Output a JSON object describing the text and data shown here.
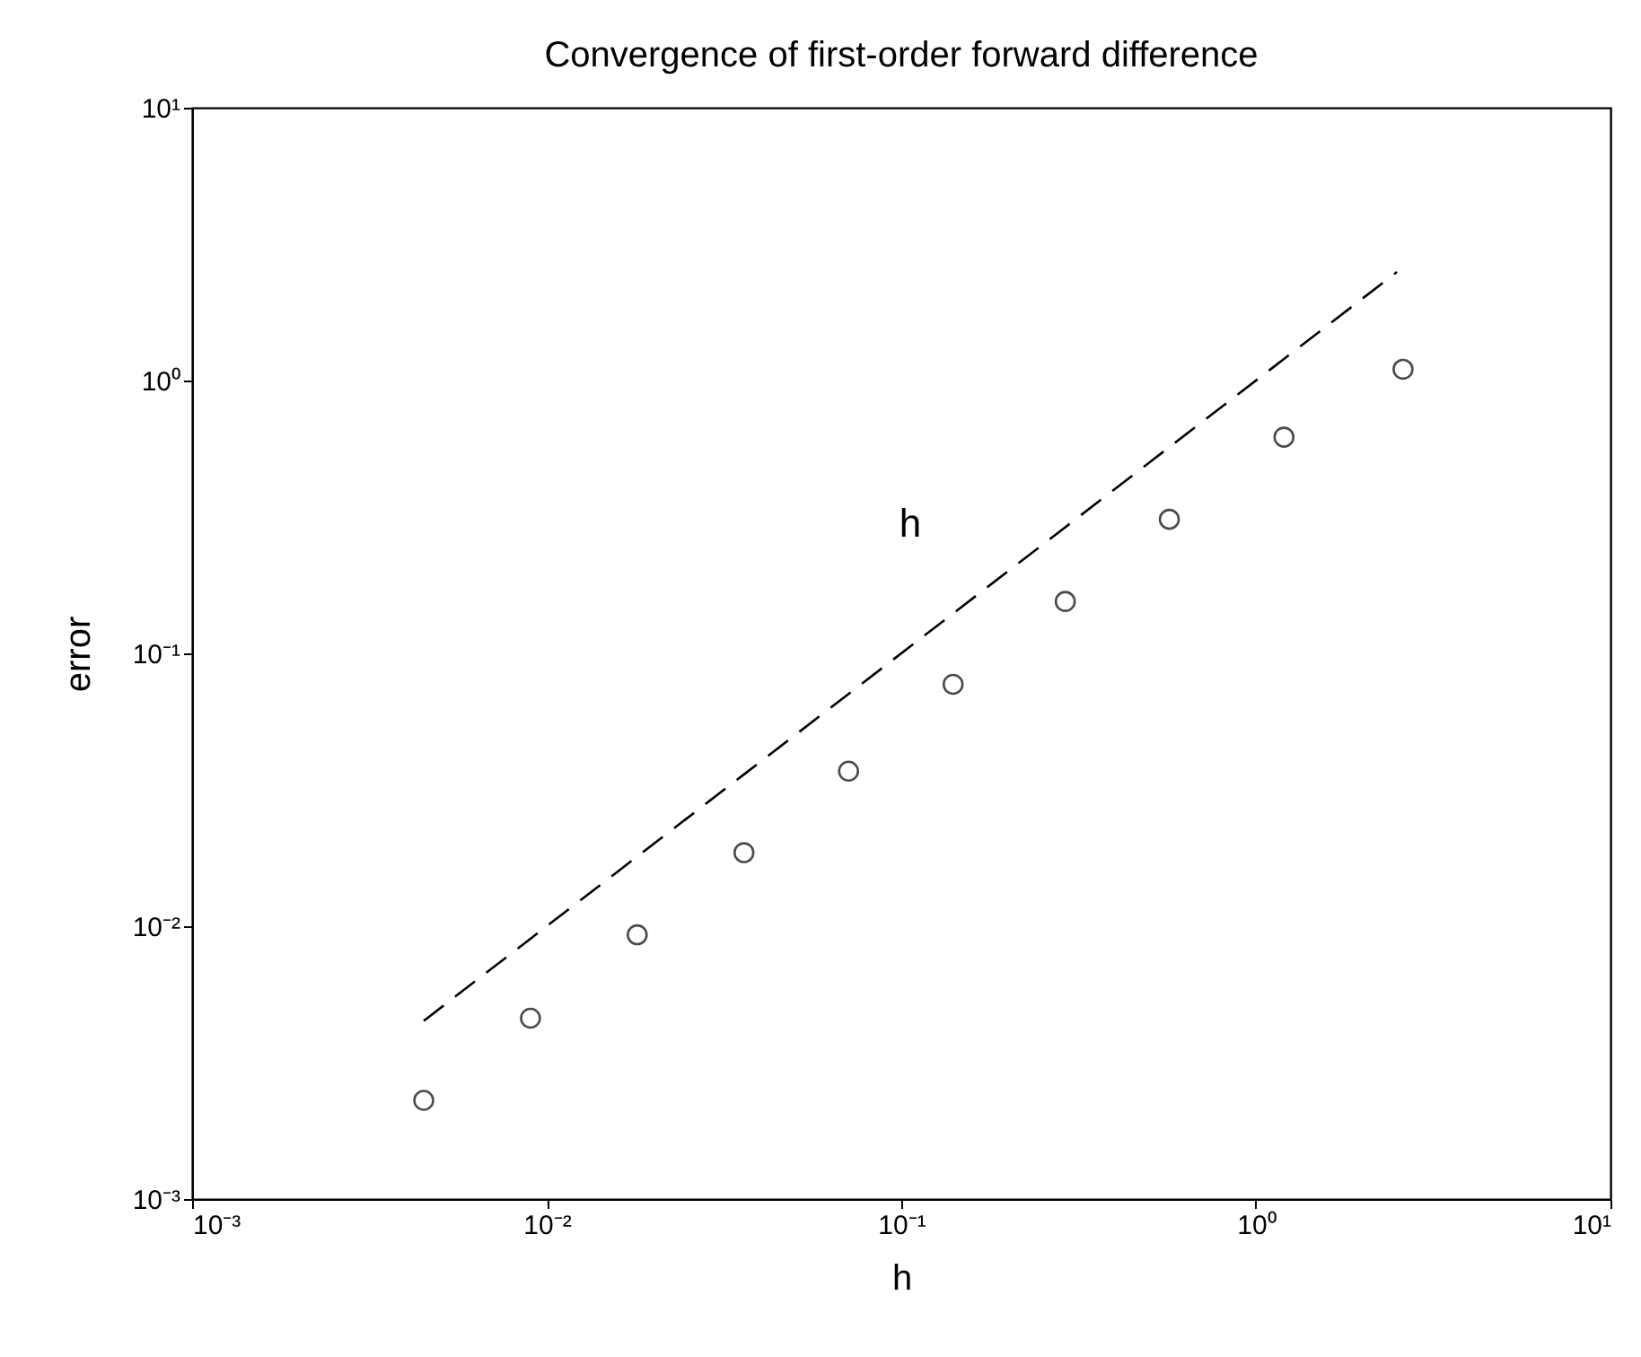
{
  "chart_data": {
    "type": "scatter",
    "title": "Convergence of first-order forward difference",
    "xlabel": "h",
    "ylabel": "error",
    "log": "xy",
    "xlim": [
      0.001,
      10
    ],
    "ylim": [
      0.001,
      10
    ],
    "xticks": [
      {
        "value": 0.001,
        "label": "10⁻³"
      },
      {
        "value": 0.01,
        "label": "10⁻²"
      },
      {
        "value": 0.1,
        "label": "10⁻¹"
      },
      {
        "value": 1,
        "label": "10⁰"
      },
      {
        "value": 10,
        "label": "10¹"
      }
    ],
    "yticks": [
      {
        "value": 0.001,
        "label": "10⁻³"
      },
      {
        "value": 0.01,
        "label": "10⁻²"
      },
      {
        "value": 0.1,
        "label": "10⁻¹"
      },
      {
        "value": 1,
        "label": "10⁰"
      },
      {
        "value": 10,
        "label": "10¹"
      }
    ],
    "grid": false,
    "series": [
      {
        "color": "#000000",
        "marker": "circle",
        "x": [
          0.0045,
          0.009,
          0.018,
          0.036,
          0.071,
          0.14,
          0.29,
          0.57,
          1.2,
          2.6
        ],
        "values": [
          0.0023,
          0.0046,
          0.0093,
          0.0186,
          0.037,
          0.077,
          0.155,
          0.31,
          0.62,
          1.1
        ]
      },
      {
        "type": "line",
        "color": "#000000",
        "line_style": "dashed",
        "marker": "none",
        "x": [
          0.0045,
          0.009,
          0.018,
          0.036,
          0.071,
          0.14,
          0.29,
          0.57,
          1.2,
          2.5
        ],
        "values": [
          0.0045,
          0.009,
          0.018,
          0.036,
          0.071,
          0.14,
          0.29,
          0.57,
          1.2,
          2.5
        ]
      }
    ],
    "annotations": [
      "h"
    ]
  }
}
